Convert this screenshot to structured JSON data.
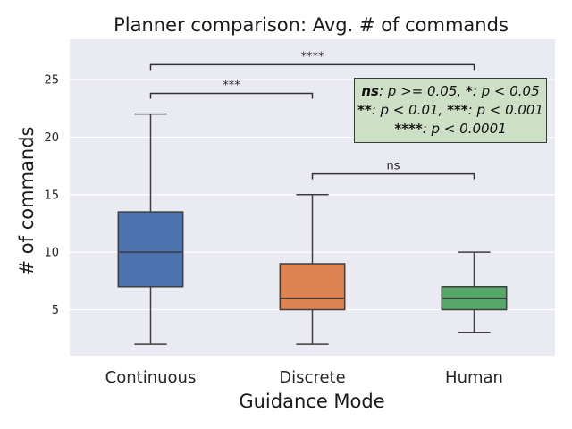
{
  "chart_data": {
    "type": "box",
    "title": "Planner comparison: Avg. # of commands",
    "xlabel": "Guidance Mode",
    "ylabel": "# of commands",
    "ylim": [
      1,
      28.5
    ],
    "yticks": [
      5,
      10,
      15,
      20,
      25
    ],
    "grid": true,
    "categories": [
      "Continuous",
      "Discrete",
      "Human"
    ],
    "colors": [
      "#4c72b0",
      "#dd8452",
      "#55a868"
    ],
    "boxes": [
      {
        "category": "Continuous",
        "whisker_low": 2,
        "q1": 7,
        "median": 10,
        "q3": 13.5,
        "whisker_high": 22
      },
      {
        "category": "Discrete",
        "whisker_low": 2,
        "q1": 5,
        "median": 6,
        "q3": 9,
        "whisker_high": 15
      },
      {
        "category": "Human",
        "whisker_low": 3,
        "q1": 5,
        "median": 6,
        "q3": 7,
        "whisker_high": 10
      }
    ],
    "significance": [
      {
        "from": "Continuous",
        "to": "Human",
        "label": "****",
        "y": 26.3
      },
      {
        "from": "Continuous",
        "to": "Discrete",
        "label": "***",
        "y": 23.8
      },
      {
        "from": "Discrete",
        "to": "Human",
        "label": "ns",
        "y": 16.8
      }
    ],
    "legend_box": {
      "line1_bold_a": "ns",
      "line1_rest_a": ": p >= 0.05, ",
      "line1_bold_b": "*",
      "line1_rest_b": ": p < 0.05",
      "line2_bold_a": "**",
      "line2_rest_a": ": p < 0.01, ",
      "line2_bold_b": "***",
      "line2_rest_b": ": p < 0.001",
      "line3_bold_a": "****",
      "line3_rest_a": ": p < 0.0001",
      "placement": "top-right"
    }
  }
}
